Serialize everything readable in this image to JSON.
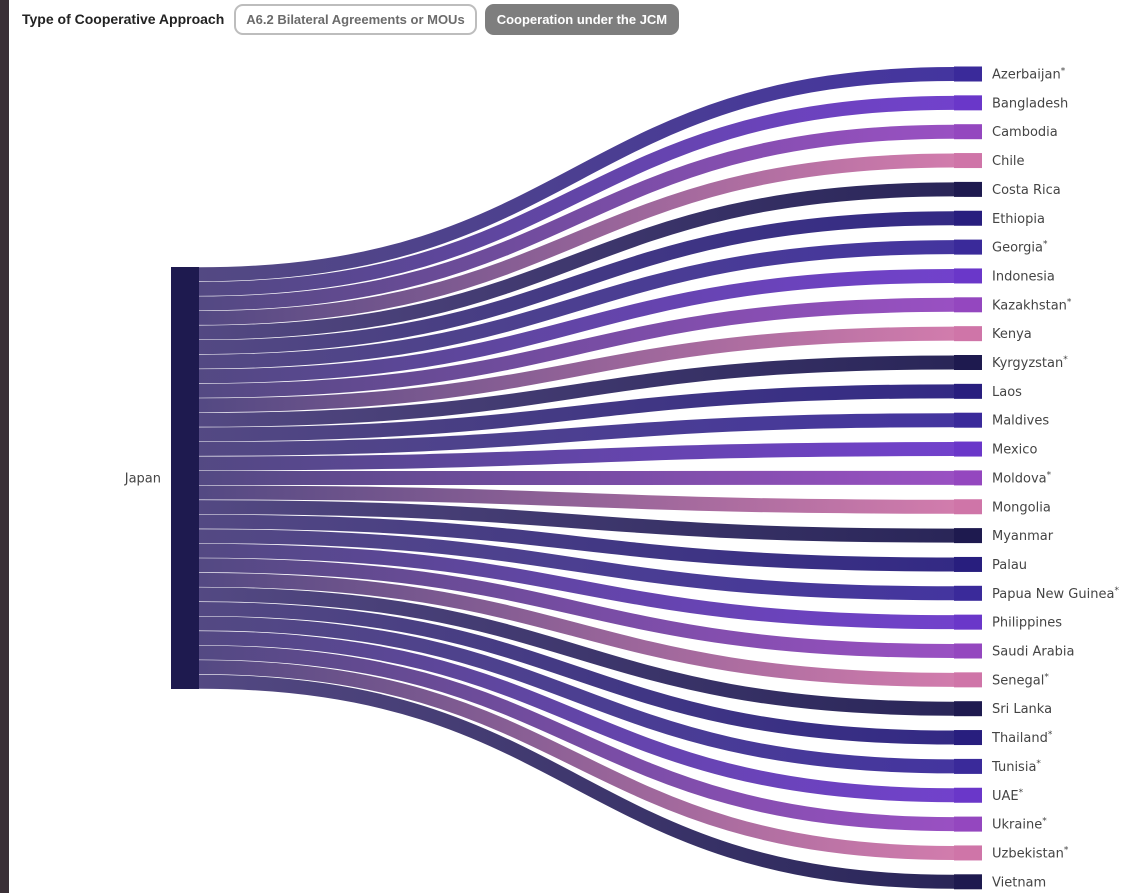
{
  "filter": {
    "label": "Type of Cooperative Approach",
    "options": [
      {
        "label": "A6.2 Bilateral Agreements or MOUs",
        "active": false
      },
      {
        "label": "Cooperation under the JCM",
        "active": true
      }
    ]
  },
  "chart_data": {
    "type": "sankey",
    "source": "Japan",
    "targets": [
      {
        "name": "Azerbaijan",
        "marker": "*",
        "color": "#3a2a9a"
      },
      {
        "name": "Bangladesh",
        "marker": "",
        "color": "#6a37c9"
      },
      {
        "name": "Cambodia",
        "marker": "",
        "color": "#9447bf"
      },
      {
        "name": "Chile",
        "marker": "",
        "color": "#cf75a8"
      },
      {
        "name": "Costa Rica",
        "marker": "",
        "color": "#1e1a4f"
      },
      {
        "name": "Ethiopia",
        "marker": "",
        "color": "#281e7e"
      },
      {
        "name": "Georgia",
        "marker": "*",
        "color": "#3a2a9a"
      },
      {
        "name": "Indonesia",
        "marker": "",
        "color": "#6a37c9"
      },
      {
        "name": "Kazakhstan",
        "marker": "*",
        "color": "#9447bf"
      },
      {
        "name": "Kenya",
        "marker": "",
        "color": "#cf75a8"
      },
      {
        "name": "Kyrgyzstan",
        "marker": "*",
        "color": "#1e1a4f"
      },
      {
        "name": "Laos",
        "marker": "",
        "color": "#281e7e"
      },
      {
        "name": "Maldives",
        "marker": "",
        "color": "#3a2a9a"
      },
      {
        "name": "Mexico",
        "marker": "",
        "color": "#6a37c9"
      },
      {
        "name": "Moldova",
        "marker": "*",
        "color": "#9447bf"
      },
      {
        "name": "Mongolia",
        "marker": "",
        "color": "#cf75a8"
      },
      {
        "name": "Myanmar",
        "marker": "",
        "color": "#1e1a4f"
      },
      {
        "name": "Palau",
        "marker": "",
        "color": "#281e7e"
      },
      {
        "name": "Papua New Guinea",
        "marker": "*",
        "color": "#3a2a9a"
      },
      {
        "name": "Philippines",
        "marker": "",
        "color": "#6a37c9"
      },
      {
        "name": "Saudi Arabia",
        "marker": "",
        "color": "#9447bf"
      },
      {
        "name": "Senegal",
        "marker": "*",
        "color": "#cf75a8"
      },
      {
        "name": "Sri Lanka",
        "marker": "",
        "color": "#1e1a4f"
      },
      {
        "name": "Thailand",
        "marker": "*",
        "color": "#281e7e"
      },
      {
        "name": "Tunisia",
        "marker": "*",
        "color": "#3a2a9a"
      },
      {
        "name": "UAE",
        "marker": "*",
        "color": "#6a37c9"
      },
      {
        "name": "Ukraine",
        "marker": "*",
        "color": "#9447bf"
      },
      {
        "name": "Uzbekistan",
        "marker": "*",
        "color": "#cf75a8"
      },
      {
        "name": "Vietnam",
        "marker": "",
        "color": "#1e1a4f"
      }
    ],
    "link_values": "equal",
    "colors": {
      "source_node": "#1e1a4f",
      "link_source_end": "#4a3f7c"
    }
  }
}
